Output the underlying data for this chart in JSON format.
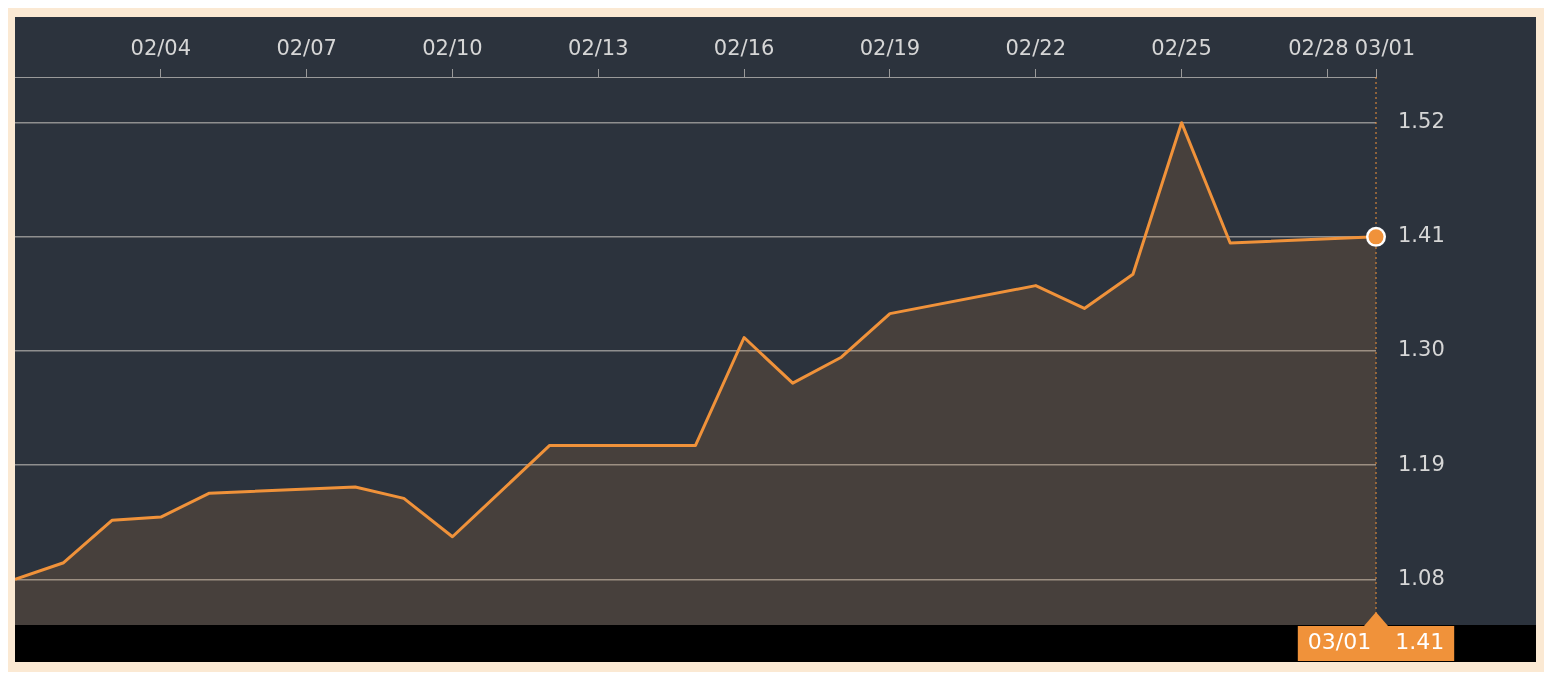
{
  "chart_data": {
    "type": "area",
    "x": [
      "--02-01",
      "--02-02",
      "--02-03",
      "--02-04",
      "--02-05",
      "--02-08",
      "--02-09",
      "--02-10",
      "--02-12",
      "--02-15",
      "--02-16",
      "--02-17",
      "--02-18",
      "--02-19",
      "--02-22",
      "--02-23",
      "--02-24",
      "--02-25",
      "--02-26",
      "--03-01"
    ],
    "series": [
      {
        "color": "#f0923a",
        "values": [
          1.08,
          1.096,
          1.137,
          1.14,
          1.163,
          1.169,
          1.158,
          1.121,
          1.209,
          1.209,
          1.313,
          1.269,
          1.294,
          1.336,
          1.363,
          1.341,
          1.374,
          1.52,
          1.404,
          1.41
        ]
      }
    ],
    "xlim": [
      "--02-01",
      "--03-01"
    ],
    "xticks": [
      {
        "value": "--02-04",
        "label": "02/04"
      },
      {
        "value": "--02-07",
        "label": "02/07"
      },
      {
        "value": "--02-10",
        "label": "02/10"
      },
      {
        "value": "--02-13",
        "label": "02/13"
      },
      {
        "value": "--02-16",
        "label": "02/16"
      },
      {
        "value": "--02-19",
        "label": "02/19"
      },
      {
        "value": "--02-22",
        "label": "02/22"
      },
      {
        "value": "--02-25",
        "label": "02/25"
      },
      {
        "value": "--02-28",
        "label": "02/28"
      },
      {
        "value": "--03-01",
        "label": "03/01"
      }
    ],
    "ylim": [
      1.036,
      1.564
    ],
    "yticks": [
      1.08,
      1.19,
      {
        "value": 1.3,
        "label": "1.30"
      },
      1.41,
      1.52
    ],
    "grid": "y",
    "marker": "none",
    "line_style": "solid",
    "legend": false,
    "ref_lines": [
      {
        "axis": "x",
        "value": "--03-01",
        "color": "#f0923a",
        "line_style": "dotted"
      }
    ],
    "annotations": [
      "03/01",
      "1.41"
    ]
  }
}
